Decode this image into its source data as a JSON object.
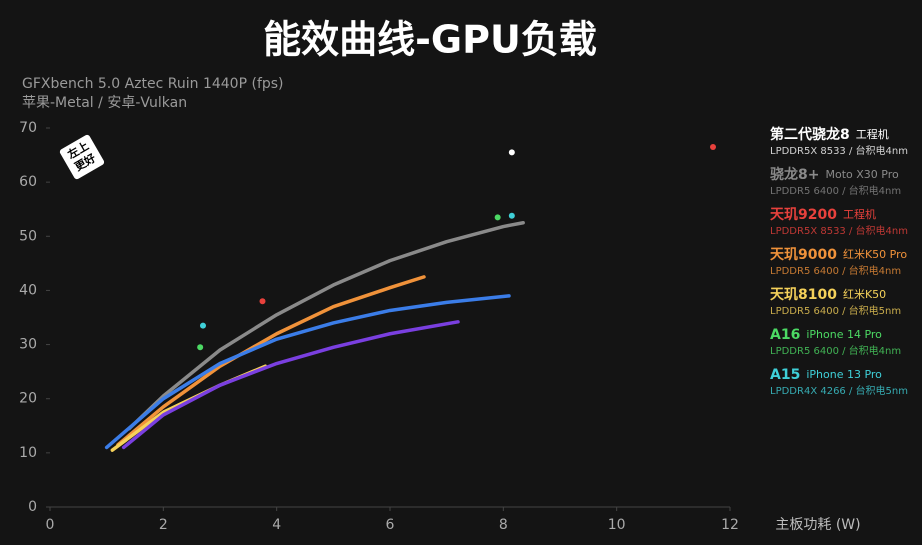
{
  "chart_data": {
    "type": "line",
    "title": "能效曲线-GPU负载",
    "subtitle": [
      "GFXbench 5.0 Aztec Ruin 1440P (fps)",
      "苹果-Metal / 安卓-Vulkan"
    ],
    "badge": [
      "左上",
      "更好"
    ],
    "x_label": "主板功耗 (W)",
    "xlim": [
      0,
      12
    ],
    "xticks": [
      0,
      2,
      4,
      6,
      8,
      10,
      12
    ],
    "ylim": [
      0,
      70
    ],
    "yticks": [
      0,
      10,
      20,
      30,
      40,
      50,
      60,
      70
    ],
    "series": [
      {
        "name": "第二代骁龙8",
        "device": "工程机",
        "spec": "LPDDR5X 8533 / 台积电4nm",
        "color": "#ffffff",
        "mode": "points",
        "x": [
          8.15
        ],
        "values": [
          65.5
        ]
      },
      {
        "name": "骁龙8+",
        "device": "Moto X30 Pro",
        "spec": "LPDDR5 6400 / 台积电4nm",
        "color": "#8a8a8a",
        "mode": "line",
        "x": [
          1.4,
          2,
          3,
          4,
          5,
          6,
          7,
          8,
          8.35
        ],
        "values": [
          14.5,
          20.5,
          29,
          35.5,
          41,
          45.5,
          49,
          51.8,
          52.5
        ]
      },
      {
        "name": "天玑9200",
        "device": "工程机",
        "spec": "LPDDR5X 8533 / 台积电4nm",
        "color": "#e8413c",
        "mode": "points",
        "x": [
          3.75,
          11.7
        ],
        "values": [
          38,
          66.5
        ]
      },
      {
        "name": "天玑9000",
        "device": "红米K50 Pro",
        "spec": "LPDDR5 6400 / 台积电4nm",
        "color": "#f0923a",
        "mode": "line",
        "x": [
          1.2,
          2,
          3,
          4,
          5,
          6,
          6.6
        ],
        "values": [
          11.5,
          18.5,
          26,
          32,
          37,
          40.5,
          42.5
        ]
      },
      {
        "name": "天玑8100",
        "device": "红米K50",
        "spec": "LPDDR5 6400 / 台积电5nm",
        "color": "#f5d15a",
        "mode": "line",
        "x": [
          1.1,
          2,
          3,
          3.8
        ],
        "values": [
          10.5,
          17.5,
          22.5,
          26
        ]
      },
      {
        "name": "A16",
        "device": "iPhone 14 Pro",
        "spec": "LPDDR5 6400 / 台积电4nm",
        "color": "#4cd964",
        "mode": "points",
        "x": [
          2.65,
          7.9
        ],
        "values": [
          29.5,
          53.5
        ]
      },
      {
        "name": "A15",
        "device": "iPhone 13 Pro",
        "spec": "LPDDR4X 4266 / 台积电5nm",
        "color": "#3fd0d8",
        "mode": "points",
        "x": [
          2.7,
          8.15
        ],
        "values": [
          33.5,
          53.8
        ]
      },
      {
        "color": "#3b7de8",
        "mode": "line",
        "x": [
          1.0,
          2,
          3,
          4,
          5,
          6,
          7,
          8.1
        ],
        "values": [
          11,
          20,
          26.5,
          31,
          34,
          36.3,
          37.8,
          39
        ]
      },
      {
        "color": "#7a3fe0",
        "mode": "line",
        "x": [
          1.3,
          2,
          3,
          4,
          5,
          6,
          7.2
        ],
        "values": [
          11,
          17,
          22.5,
          26.5,
          29.5,
          32,
          34.2
        ]
      }
    ]
  }
}
